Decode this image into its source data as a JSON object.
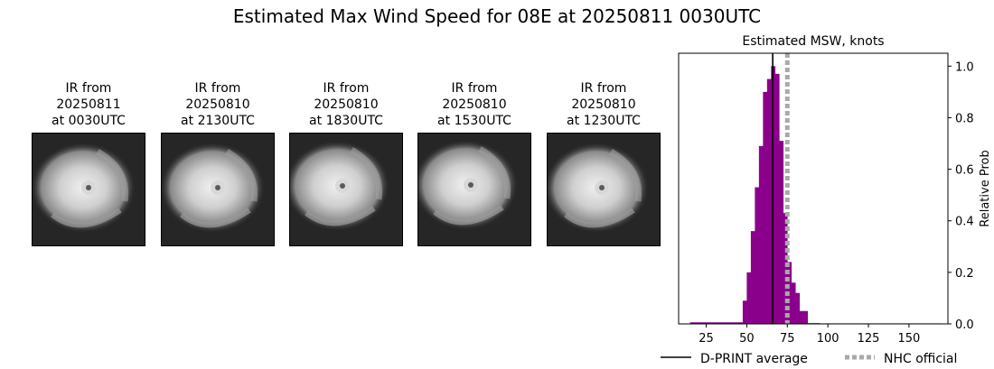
{
  "title": "Estimated Max Wind Speed for 08E at 20250811 0030UTC",
  "ir_panels": [
    {
      "line1": "IR from",
      "line2": "20250811",
      "line3": "at 0030UTC"
    },
    {
      "line1": "IR from",
      "line2": "20250810",
      "line3": "at 2130UTC"
    },
    {
      "line1": "IR from",
      "line2": "20250810",
      "line3": "at 1830UTC"
    },
    {
      "line1": "IR from",
      "line2": "20250810",
      "line3": "at 1530UTC"
    },
    {
      "line1": "IR from",
      "line2": "20250810",
      "line3": "at 1230UTC"
    }
  ],
  "chart_data": {
    "type": "bar",
    "title": "Estimated MSW, knots",
    "xlabel": "",
    "ylabel": "Relative Prob",
    "xlim": [
      8,
      174
    ],
    "ylim": [
      0,
      1.05
    ],
    "xticks": [
      25,
      50,
      75,
      100,
      125,
      150
    ],
    "yticks": [
      0.0,
      0.2,
      0.4,
      0.6,
      0.8,
      1.0
    ],
    "ytick_labels": [
      "0.0",
      "0.2",
      "0.4",
      "0.6",
      "0.8",
      "1.0"
    ],
    "y_axis_side": "right",
    "bar_color": "#8b008b",
    "bin_width": 2.5,
    "bins": [
      {
        "x": 16.25,
        "value": 0.006
      },
      {
        "x": 18.75,
        "value": 0.006
      },
      {
        "x": 21.25,
        "value": 0.006
      },
      {
        "x": 23.75,
        "value": 0.006
      },
      {
        "x": 26.25,
        "value": 0.006
      },
      {
        "x": 28.75,
        "value": 0.006
      },
      {
        "x": 31.25,
        "value": 0.006
      },
      {
        "x": 33.75,
        "value": 0.006
      },
      {
        "x": 36.25,
        "value": 0.006
      },
      {
        "x": 38.75,
        "value": 0.006
      },
      {
        "x": 41.25,
        "value": 0.006
      },
      {
        "x": 43.75,
        "value": 0.006
      },
      {
        "x": 46.25,
        "value": 0.006
      },
      {
        "x": 48.75,
        "value": 0.09
      },
      {
        "x": 51.25,
        "value": 0.2
      },
      {
        "x": 53.75,
        "value": 0.36
      },
      {
        "x": 56.25,
        "value": 0.53
      },
      {
        "x": 58.75,
        "value": 0.69
      },
      {
        "x": 61.25,
        "value": 0.9
      },
      {
        "x": 63.75,
        "value": 0.95
      },
      {
        "x": 66.25,
        "value": 1.0
      },
      {
        "x": 68.75,
        "value": 0.97
      },
      {
        "x": 71.25,
        "value": 0.71
      },
      {
        "x": 73.75,
        "value": 0.43
      },
      {
        "x": 76.25,
        "value": 0.24
      },
      {
        "x": 78.75,
        "value": 0.16
      },
      {
        "x": 81.25,
        "value": 0.12
      },
      {
        "x": 83.75,
        "value": 0.05
      },
      {
        "x": 86.25,
        "value": 0.05
      },
      {
        "x": 88.75,
        "value": 0.003
      },
      {
        "x": 91.25,
        "value": 0.003
      },
      {
        "x": 93.75,
        "value": 0.003
      },
      {
        "x": 96.25,
        "value": 0.002
      },
      {
        "x": 98.75,
        "value": 0.002
      },
      {
        "x": 101.25,
        "value": 0.002
      },
      {
        "x": 103.75,
        "value": 0.002
      },
      {
        "x": 106.25,
        "value": 0.002
      },
      {
        "x": 108.75,
        "value": 0.002
      },
      {
        "x": 111.25,
        "value": 0.002
      },
      {
        "x": 113.75,
        "value": 0.002
      },
      {
        "x": 116.25,
        "value": 0.002
      },
      {
        "x": 118.75,
        "value": 0.002
      },
      {
        "x": 121.25,
        "value": 0.002
      },
      {
        "x": 123.75,
        "value": 0.002
      },
      {
        "x": 126.25,
        "value": 0.002
      },
      {
        "x": 128.75,
        "value": 0.002
      },
      {
        "x": 131.25,
        "value": 0.002
      },
      {
        "x": 133.75,
        "value": 0.002
      },
      {
        "x": 136.25,
        "value": 0.002
      },
      {
        "x": 138.75,
        "value": 0.002
      },
      {
        "x": 141.25,
        "value": 0.002
      },
      {
        "x": 143.75,
        "value": 0.002
      },
      {
        "x": 146.25,
        "value": 0.002
      },
      {
        "x": 148.75,
        "value": 0.002
      },
      {
        "x": 151.25,
        "value": 0.002
      },
      {
        "x": 153.75,
        "value": 0.002
      },
      {
        "x": 156.25,
        "value": 0.002
      },
      {
        "x": 158.75,
        "value": 0.002
      },
      {
        "x": 161.25,
        "value": 0.002
      },
      {
        "x": 163.75,
        "value": 0.002
      },
      {
        "x": 166.25,
        "value": 0.002
      },
      {
        "x": 168.75,
        "value": 0.002
      }
    ],
    "reference_lines": [
      {
        "name": "D-PRINT average",
        "x": 66,
        "color": "#000000",
        "style": "solid"
      },
      {
        "name": "NHC official",
        "x": 75,
        "color": "#a9a9a9",
        "style": "dotted"
      }
    ],
    "legend": {
      "placement": "bottom",
      "entries": [
        {
          "label": "D-PRINT average",
          "color": "#000000",
          "style": "solid"
        },
        {
          "label": "NHC official",
          "color": "#a9a9a9",
          "style": "dotted"
        }
      ]
    }
  }
}
